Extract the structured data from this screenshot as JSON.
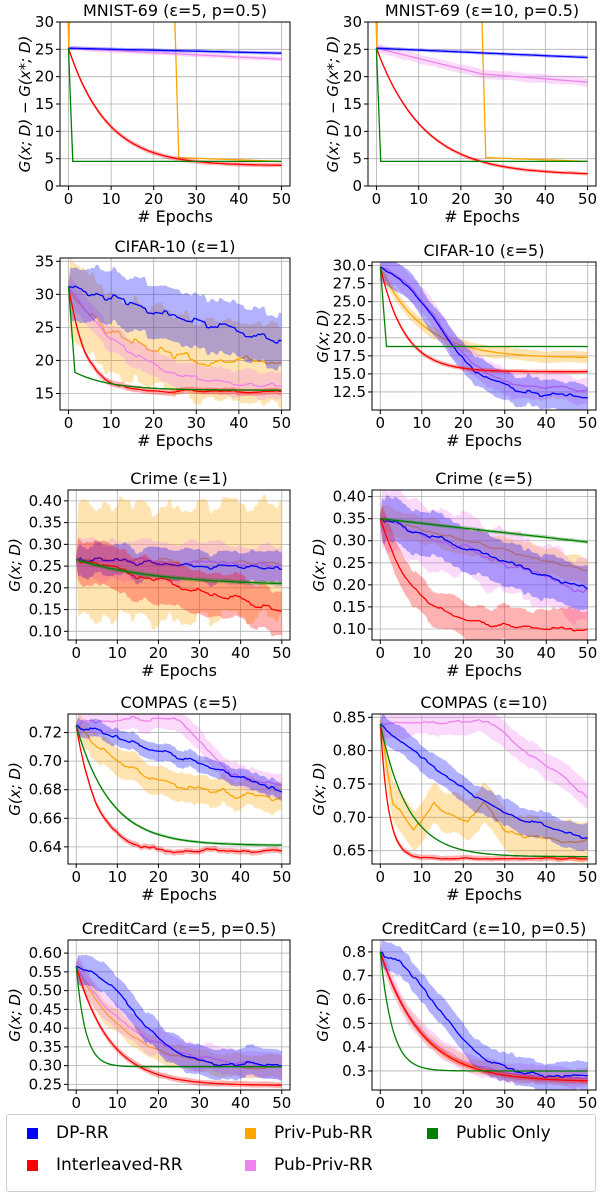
{
  "legend": {
    "items": [
      {
        "label": "DP-RR",
        "color": "#0000ff"
      },
      {
        "label": "Priv-Pub-RR",
        "color": "#ffa500"
      },
      {
        "label": "Public Only",
        "color": "#008000"
      },
      {
        "label": "Interleaved-RR",
        "color": "#ff0000"
      },
      {
        "label": "Pub-Priv-RR",
        "color": "#ee82ee"
      }
    ]
  },
  "chart_data": [
    {
      "type": "line",
      "title": "MNIST-69 (ε=5, p=0.5)",
      "xlabel": "# Epochs",
      "ylabel": "G(x; D) − G(x*; D)",
      "xlim": [
        -2,
        52
      ],
      "ylim": [
        0,
        30
      ],
      "xticks": [
        0,
        10,
        20,
        30,
        40,
        50
      ],
      "yticks": [
        0,
        5,
        10,
        15,
        20,
        25,
        30
      ],
      "series": [
        {
          "name": "DP-RR",
          "start": 25.2,
          "end": 24.3,
          "shape": "linear",
          "band": 0.3
        },
        {
          "name": "Interleaved-RR",
          "start": 25.2,
          "end": 3.7,
          "shape": "exp",
          "k": 0.11,
          "band": 0.4
        },
        {
          "name": "Priv-Pub-RR",
          "points": [
            [
              -0.3,
              35
            ],
            [
              0.1,
              25.2
            ],
            [
              0.3,
              35
            ]
          ],
          "segments": [
            [
              [
                24.8,
                35
              ],
              [
                25.9,
                5.2
              ],
              [
                50,
                4.5
              ]
            ]
          ]
        },
        {
          "name": "Pub-Priv-RR",
          "start": 25.2,
          "end": 23.2,
          "shape": "linear",
          "band": 0.4
        },
        {
          "name": "Public Only",
          "start": 25.2,
          "end": 4.5,
          "shape": "step",
          "stepAt": 1,
          "band": 0.1
        }
      ]
    },
    {
      "type": "line",
      "title": "MNIST-69 (ε=10, p=0.5)",
      "xlabel": "# Epochs",
      "ylabel": "G(x; D) − G(x*; D)",
      "xlim": [
        -2,
        52
      ],
      "ylim": [
        0,
        30
      ],
      "xticks": [
        0,
        10,
        20,
        30,
        40,
        50
      ],
      "yticks": [
        0,
        5,
        10,
        15,
        20,
        25,
        30
      ],
      "series": [
        {
          "name": "DP-RR",
          "start": 25.2,
          "end": 23.5,
          "shape": "linear",
          "band": 0.3
        },
        {
          "name": "Interleaved-RR",
          "start": 25.2,
          "end": 2.0,
          "shape": "exp",
          "k": 0.09,
          "band": 0.3
        },
        {
          "name": "Priv-Pub-RR",
          "points": [
            [
              -0.3,
              35
            ],
            [
              0.1,
              25.2
            ],
            [
              0.3,
              35
            ]
          ],
          "segments": [
            [
              [
                24.8,
                35
              ],
              [
                25.9,
                5.2
              ],
              [
                50,
                4.5
              ]
            ]
          ]
        },
        {
          "name": "Pub-Priv-RR",
          "points": [
            [
              0,
              25.2
            ],
            [
              25,
              20.5
            ],
            [
              50,
              19.0
            ]
          ],
          "band": 0.8
        },
        {
          "name": "Public Only",
          "start": 25.2,
          "end": 4.5,
          "shape": "step",
          "stepAt": 1,
          "band": 0.1
        }
      ]
    },
    {
      "type": "line",
      "title": "CIFAR-10 (ε=1)",
      "xlabel": "# Epochs",
      "ylabel": "",
      "xlim": [
        -2,
        52
      ],
      "ylim": [
        12.5,
        35.5
      ],
      "xticks": [
        0,
        10,
        20,
        30,
        40,
        50
      ],
      "yticks": [
        15,
        20,
        25,
        30,
        35
      ],
      "series": [
        {
          "name": "DP-RR",
          "start": 31.2,
          "end": 22.5,
          "shape": "linear",
          "band": 4.0,
          "noise": 1.2
        },
        {
          "name": "Interleaved-RR",
          "start": 31.2,
          "end": 15.3,
          "shape": "exp",
          "k": 0.25,
          "band": 0.5,
          "noise": 0.3
        },
        {
          "name": "Priv-Pub-RR",
          "start": 31.2,
          "end": 19.8,
          "shape": "exp",
          "k": 0.09,
          "band": 6.0,
          "noise": 1.5
        },
        {
          "name": "Pub-Priv-RR",
          "start": 31.2,
          "end": 15.5,
          "shape": "exp",
          "k": 0.07,
          "band": 2.0,
          "noise": 0.8
        },
        {
          "name": "Public Only",
          "start": 31.2,
          "end": 15.5,
          "shape": "fastexp",
          "dropAt": 1.5,
          "dropTo": 18.2,
          "band": 0.1
        }
      ]
    },
    {
      "type": "line",
      "title": "CIFAR-10 (ε=5)",
      "xlabel": "# Epochs",
      "ylabel": "G(x; D)",
      "xlim": [
        -2,
        52
      ],
      "ylim": [
        10.0,
        30.5
      ],
      "xticks": [
        0,
        10,
        20,
        30,
        40,
        50
      ],
      "yticks": [
        12.5,
        15.0,
        17.5,
        20.0,
        22.5,
        25.0,
        27.5,
        30.0
      ],
      "series": [
        {
          "name": "DP-RR",
          "start": 29.8,
          "end": 12.0,
          "shape": "sig",
          "band": 2.0,
          "noise": 0.6
        },
        {
          "name": "Interleaved-RR",
          "start": 29.8,
          "end": 15.3,
          "shape": "exp",
          "k": 0.17,
          "band": 0.3
        },
        {
          "name": "Priv-Pub-RR",
          "start": 29.8,
          "end": 17.2,
          "shape": "exp",
          "k": 0.1,
          "band": 0.8
        },
        {
          "name": "Pub-Priv-RR",
          "start": 29.8,
          "end": 12.8,
          "shape": "sig",
          "band": 1.8,
          "noise": 0.5
        },
        {
          "name": "Public Only",
          "start": 29.8,
          "end": 18.8,
          "shape": "step",
          "stepAt": 1.5,
          "band": 0.1
        }
      ]
    },
    {
      "type": "line",
      "title": "Crime (ε=1)",
      "xlabel": "# Epochs",
      "ylabel": "G(x; D)",
      "xlim": [
        -2,
        52
      ],
      "ylim": [
        0.08,
        0.425
      ],
      "xticks": [
        0,
        10,
        20,
        30,
        40,
        50
      ],
      "yticks": [
        0.1,
        0.15,
        0.2,
        0.25,
        0.3,
        0.35,
        0.4
      ],
      "series": [
        {
          "name": "DP-RR",
          "start": 0.265,
          "end": 0.245,
          "shape": "linear",
          "band": 0.035,
          "noise": 0.01
        },
        {
          "name": "Interleaved-RR",
          "start": 0.265,
          "end": 0.145,
          "shape": "linear",
          "band": 0.05,
          "noise": 0.012
        },
        {
          "name": "Priv-Pub-RR",
          "start": 0.265,
          "end": 0.255,
          "shape": "linear",
          "band": 0.13,
          "noise": 0.012
        },
        {
          "name": "Pub-Priv-RR",
          "start": 0.265,
          "end": 0.25,
          "shape": "linear",
          "band": 0.045,
          "noise": 0.01
        },
        {
          "name": "Public Only",
          "start": 0.265,
          "end": 0.205,
          "shape": "exp",
          "k": 0.05,
          "band": 0.005
        }
      ]
    },
    {
      "type": "line",
      "title": "Crime (ε=5)",
      "xlabel": "# Epochs",
      "ylabel": "G(x; D)",
      "xlim": [
        -2,
        52
      ],
      "ylim": [
        0.075,
        0.415
      ],
      "xticks": [
        0,
        10,
        20,
        30,
        40,
        50
      ],
      "yticks": [
        0.1,
        0.15,
        0.2,
        0.25,
        0.3,
        0.35,
        0.4
      ],
      "series": [
        {
          "name": "DP-RR",
          "start": 0.35,
          "end": 0.19,
          "shape": "linear",
          "band": 0.05,
          "noise": 0.012
        },
        {
          "name": "Interleaved-RR",
          "start": 0.35,
          "end": 0.1,
          "shape": "exp",
          "k": 0.12,
          "band": 0.04,
          "noise": 0.008
        },
        {
          "name": "Priv-Pub-RR",
          "start": 0.35,
          "end": 0.23,
          "shape": "linear",
          "band": 0.03,
          "noise": 0.006
        },
        {
          "name": "Pub-Priv-RR",
          "start": 0.35,
          "end": 0.18,
          "shape": "linear",
          "band": 0.07,
          "noise": 0.015
        },
        {
          "name": "Public Only",
          "start": 0.35,
          "end": 0.297,
          "shape": "linear",
          "band": 0.004
        }
      ]
    },
    {
      "type": "line",
      "title": "COMPAS (ε=5)",
      "xlabel": "# Epochs",
      "ylabel": "G(x; D)",
      "xlim": [
        -2,
        52
      ],
      "ylim": [
        0.628,
        0.733
      ],
      "xticks": [
        0,
        10,
        20,
        30,
        40,
        50
      ],
      "yticks": [
        0.64,
        0.66,
        0.68,
        0.7,
        0.72
      ],
      "series": [
        {
          "name": "DP-RR",
          "start": 0.725,
          "end": 0.679,
          "shape": "linear",
          "band": 0.006,
          "noise": 0.003
        },
        {
          "name": "Interleaved-RR",
          "start": 0.725,
          "end": 0.637,
          "shape": "exp",
          "k": 0.2,
          "band": 0.002,
          "noise": 0.002
        },
        {
          "name": "Priv-Pub-RR",
          "start": 0.725,
          "end": 0.672,
          "shape": "exp",
          "k": 0.06,
          "band": 0.01,
          "noise": 0.004
        },
        {
          "name": "Pub-Priv-RR",
          "points": [
            [
              0,
              0.725
            ],
            [
              2,
              0.728
            ],
            [
              25,
              0.73
            ],
            [
              30,
              0.715
            ],
            [
              35,
              0.697
            ],
            [
              42,
              0.686
            ],
            [
              50,
              0.683
            ]
          ],
          "band": 0.008,
          "noise": 0.003
        },
        {
          "name": "Public Only",
          "start": 0.725,
          "end": 0.641,
          "shape": "exp",
          "k": 0.12,
          "band": 0.001
        }
      ]
    },
    {
      "type": "line",
      "title": "COMPAS (ε=10)",
      "xlabel": "# Epochs",
      "ylabel": "G(x; D)",
      "xlim": [
        -2,
        52
      ],
      "ylim": [
        0.63,
        0.855
      ],
      "xticks": [
        0,
        10,
        20,
        30,
        40,
        50
      ],
      "yticks": [
        0.65,
        0.7,
        0.75,
        0.8,
        0.85
      ],
      "series": [
        {
          "name": "DP-RR",
          "start": 0.84,
          "end": 0.672,
          "shape": "linear_ease",
          "band": 0.02,
          "noise": 0.006
        },
        {
          "name": "Interleaved-RR",
          "start": 0.84,
          "end": 0.638,
          "shape": "exp",
          "k": 0.5,
          "band": 0.004,
          "noise": 0.002
        },
        {
          "name": "Priv-Pub-RR",
          "points": [
            [
              0,
              0.84
            ],
            [
              3,
              0.72
            ],
            [
              8,
              0.68
            ],
            [
              13,
              0.72
            ],
            [
              17,
              0.705
            ],
            [
              21,
              0.69
            ],
            [
              25,
              0.72
            ],
            [
              30,
              0.68
            ],
            [
              40,
              0.667
            ],
            [
              50,
              0.665
            ]
          ],
          "band": 0.03,
          "noise": 0.006
        },
        {
          "name": "Pub-Priv-RR",
          "points": [
            [
              0,
              0.84
            ],
            [
              2,
              0.842
            ],
            [
              26,
              0.843
            ],
            [
              35,
              0.8
            ],
            [
              42,
              0.768
            ],
            [
              50,
              0.73
            ]
          ],
          "band": 0.02,
          "noise": 0.005
        },
        {
          "name": "Public Only",
          "start": 0.84,
          "end": 0.641,
          "shape": "exp",
          "k": 0.15,
          "band": 0.001
        }
      ]
    },
    {
      "type": "line",
      "title": "CreditCard (ε=5, p=0.5)",
      "xlabel": "# Epochs",
      "ylabel": "G(x; D)",
      "xlim": [
        -2,
        52
      ],
      "ylim": [
        0.235,
        0.635
      ],
      "xticks": [
        0,
        10,
        20,
        30,
        40,
        50
      ],
      "yticks": [
        0.25,
        0.3,
        0.35,
        0.4,
        0.45,
        0.5,
        0.55,
        0.6
      ],
      "series": [
        {
          "name": "DP-RR",
          "start": 0.565,
          "end": 0.3,
          "shape": "sig",
          "band": 0.04,
          "noise": 0.012
        },
        {
          "name": "Interleaved-RR",
          "start": 0.565,
          "end": 0.247,
          "shape": "exp",
          "k": 0.12,
          "band": 0.008
        },
        {
          "name": "Priv-Pub-RR",
          "start": 0.565,
          "end": 0.287,
          "shape": "exp",
          "k": 0.08,
          "band": 0.03,
          "noise": 0.006
        },
        {
          "name": "Pub-Priv-RR",
          "start": 0.565,
          "end": 0.29,
          "shape": "exp",
          "k": 0.07,
          "band": 0.035,
          "noise": 0.008
        },
        {
          "name": "Public Only",
          "start": 0.565,
          "end": 0.297,
          "shape": "exp",
          "k": 0.45,
          "band": 0.002
        }
      ]
    },
    {
      "type": "line",
      "title": "CreditCard (ε=10, p=0.5)",
      "xlabel": "# Epochs",
      "ylabel": "G(x; D)",
      "xlim": [
        -2,
        52
      ],
      "ylim": [
        0.22,
        0.85
      ],
      "xticks": [
        0,
        10,
        20,
        30,
        40,
        50
      ],
      "yticks": [
        0.3,
        0.4,
        0.5,
        0.6,
        0.7,
        0.8
      ],
      "series": [
        {
          "name": "DP-RR",
          "start": 0.8,
          "end": 0.275,
          "shape": "sig",
          "band": 0.06,
          "noise": 0.015
        },
        {
          "name": "Interleaved-RR",
          "start": 0.8,
          "end": 0.255,
          "shape": "exp",
          "k": 0.1,
          "band": 0.012
        },
        {
          "name": "Priv-Pub-RR",
          "start": 0.8,
          "end": 0.265,
          "shape": "exp",
          "k": 0.1,
          "band": 0.03,
          "noise": 0.006
        },
        {
          "name": "Pub-Priv-RR",
          "start": 0.8,
          "end": 0.265,
          "shape": "exp",
          "k": 0.095,
          "band": 0.04,
          "noise": 0.008
        },
        {
          "name": "Public Only",
          "start": 0.8,
          "end": 0.3,
          "shape": "exp",
          "k": 0.35,
          "band": 0.002
        }
      ]
    }
  ]
}
